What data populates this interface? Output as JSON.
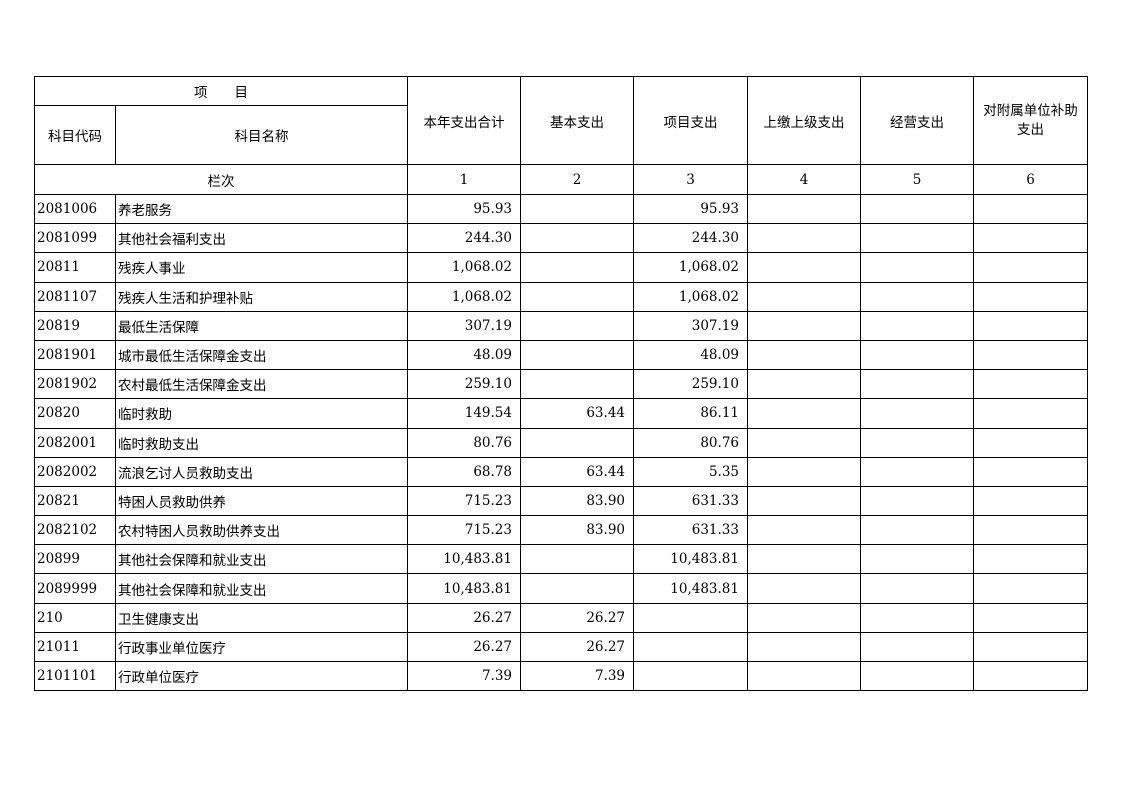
{
  "header": {
    "item": "项　　目",
    "code": "科目代码",
    "name": "科目名称",
    "columns": [
      "本年支出合计",
      "基本支出",
      "项目支出",
      "上缴上级支出",
      "经营支出",
      "对附属单位补助支出"
    ],
    "seq_label": "栏次",
    "seq": [
      "1",
      "2",
      "3",
      "4",
      "5",
      "6"
    ]
  },
  "rows": [
    {
      "code": "2081006",
      "name": "养老服务",
      "vals": [
        "95.93",
        "",
        "95.93",
        "",
        "",
        ""
      ]
    },
    {
      "code": "2081099",
      "name": "其他社会福利支出",
      "vals": [
        "244.30",
        "",
        "244.30",
        "",
        "",
        ""
      ]
    },
    {
      "code": "20811",
      "name": "残疾人事业",
      "vals": [
        "1,068.02",
        "",
        "1,068.02",
        "",
        "",
        ""
      ]
    },
    {
      "code": "2081107",
      "name": "残疾人生活和护理补贴",
      "vals": [
        "1,068.02",
        "",
        "1,068.02",
        "",
        "",
        ""
      ]
    },
    {
      "code": "20819",
      "name": "最低生活保障",
      "vals": [
        "307.19",
        "",
        "307.19",
        "",
        "",
        ""
      ]
    },
    {
      "code": "2081901",
      "name": "城市最低生活保障金支出",
      "vals": [
        "48.09",
        "",
        "48.09",
        "",
        "",
        ""
      ]
    },
    {
      "code": "2081902",
      "name": "农村最低生活保障金支出",
      "vals": [
        "259.10",
        "",
        "259.10",
        "",
        "",
        ""
      ]
    },
    {
      "code": "20820",
      "name": "临时救助",
      "vals": [
        "149.54",
        "63.44",
        "86.11",
        "",
        "",
        ""
      ]
    },
    {
      "code": "2082001",
      "name": "临时救助支出",
      "vals": [
        "80.76",
        "",
        "80.76",
        "",
        "",
        ""
      ]
    },
    {
      "code": "2082002",
      "name": "流浪乞讨人员救助支出",
      "vals": [
        "68.78",
        "63.44",
        "5.35",
        "",
        "",
        ""
      ]
    },
    {
      "code": "20821",
      "name": "特困人员救助供养",
      "vals": [
        "715.23",
        "83.90",
        "631.33",
        "",
        "",
        ""
      ]
    },
    {
      "code": "2082102",
      "name": "农村特困人员救助供养支出",
      "vals": [
        "715.23",
        "83.90",
        "631.33",
        "",
        "",
        ""
      ]
    },
    {
      "code": "20899",
      "name": "其他社会保障和就业支出",
      "vals": [
        "10,483.81",
        "",
        "10,483.81",
        "",
        "",
        ""
      ]
    },
    {
      "code": "2089999",
      "name": "其他社会保障和就业支出",
      "vals": [
        "10,483.81",
        "",
        "10,483.81",
        "",
        "",
        ""
      ]
    },
    {
      "code": "210",
      "name": "卫生健康支出",
      "vals": [
        "26.27",
        "26.27",
        "",
        "",
        "",
        ""
      ]
    },
    {
      "code": "21011",
      "name": "行政事业单位医疗",
      "vals": [
        "26.27",
        "26.27",
        "",
        "",
        "",
        ""
      ]
    },
    {
      "code": "2101101",
      "name": "行政单位医疗",
      "vals": [
        "7.39",
        "7.39",
        "",
        "",
        "",
        ""
      ]
    }
  ]
}
